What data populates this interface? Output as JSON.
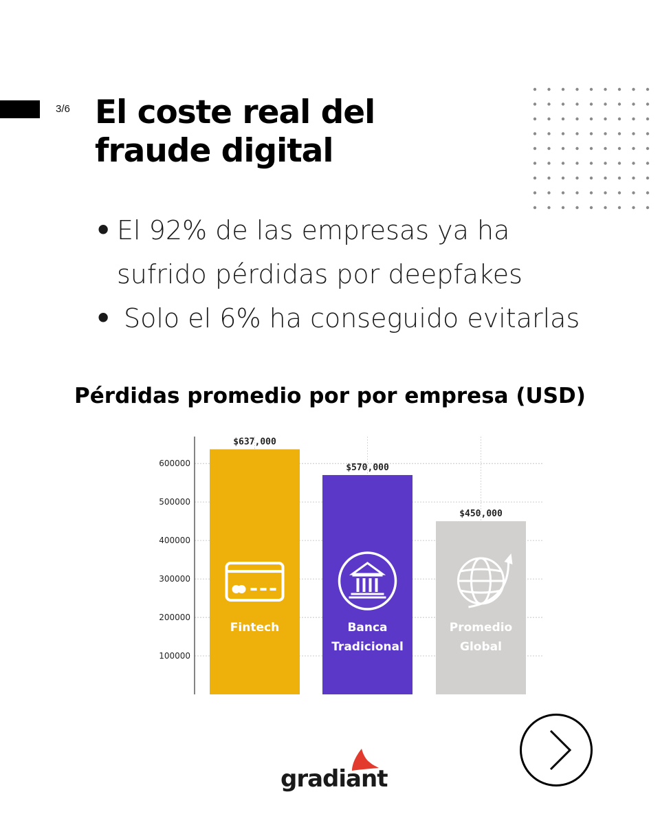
{
  "slide": {
    "page_counter": "3/6",
    "title_line1": "El coste real del",
    "title_line2": "fraude digital"
  },
  "bullets": [
    {
      "line1": "El 92% de las empresas ya ha",
      "line2": "sufrido pérdidas por deepfakes"
    },
    {
      "line1": "Solo el 6% ha conseguido evitarlas"
    }
  ],
  "chart_title": "Pérdidas promedio por por empresa (USD)",
  "chart_data": {
    "type": "bar",
    "categories": [
      "Fintech",
      "Banca Tradicional",
      "Promedio Global"
    ],
    "category_lines": [
      [
        "Fintech"
      ],
      [
        "Banca",
        "Tradicional"
      ],
      [
        "Promedio",
        "Global"
      ]
    ],
    "values": [
      637000,
      570000,
      450000
    ],
    "data_labels": [
      "$637,000",
      "$570,000",
      "$450,000"
    ],
    "colors": [
      "#EEB10C",
      "#5B38C8",
      "#D1D0CE"
    ],
    "icons": [
      "credit-card-icon",
      "bank-icon",
      "globe-icon"
    ],
    "y_ticks": [
      100000,
      200000,
      300000,
      400000,
      500000,
      600000
    ],
    "ylim": [
      0,
      670000
    ],
    "grid": true
  },
  "logo": {
    "text": "gradiant",
    "accent_color": "#E23B2E"
  },
  "navigation": {
    "icon": "chevron-right-icon"
  }
}
